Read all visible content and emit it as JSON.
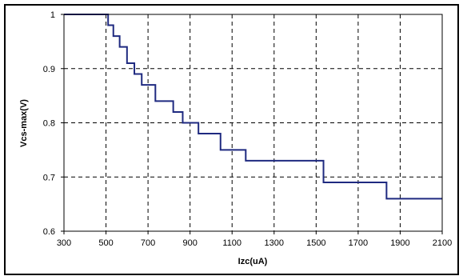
{
  "chart_data": {
    "type": "line",
    "title": "",
    "xlabel": "Izc(uA)",
    "ylabel": "Vcs-max(V)",
    "xlim": [
      300,
      2100
    ],
    "ylim": [
      0.6,
      1.0
    ],
    "x_ticks": [
      300,
      500,
      700,
      900,
      1100,
      1300,
      1500,
      1700,
      1900,
      2100
    ],
    "y_ticks": [
      0.6,
      0.7,
      0.8,
      0.9,
      1.0
    ],
    "x_tick_labels": [
      "300",
      "500",
      "700",
      "900",
      "1100",
      "1300",
      "1500",
      "1700",
      "1900",
      "2100"
    ],
    "y_tick_labels": [
      "0.6",
      "0.7",
      "0.8",
      "0.9",
      "1"
    ],
    "grid": true,
    "legend": "none",
    "line_color": "#1f2a80",
    "series": [
      {
        "step": "post",
        "x": [
          300,
          510,
          535,
          565,
          600,
          635,
          670,
          735,
          820,
          865,
          940,
          1045,
          1165,
          1535,
          1835,
          2100
        ],
        "y": [
          1.0,
          0.98,
          0.96,
          0.94,
          0.91,
          0.89,
          0.87,
          0.84,
          0.82,
          0.8,
          0.78,
          0.75,
          0.73,
          0.69,
          0.66,
          0.66
        ]
      }
    ]
  }
}
